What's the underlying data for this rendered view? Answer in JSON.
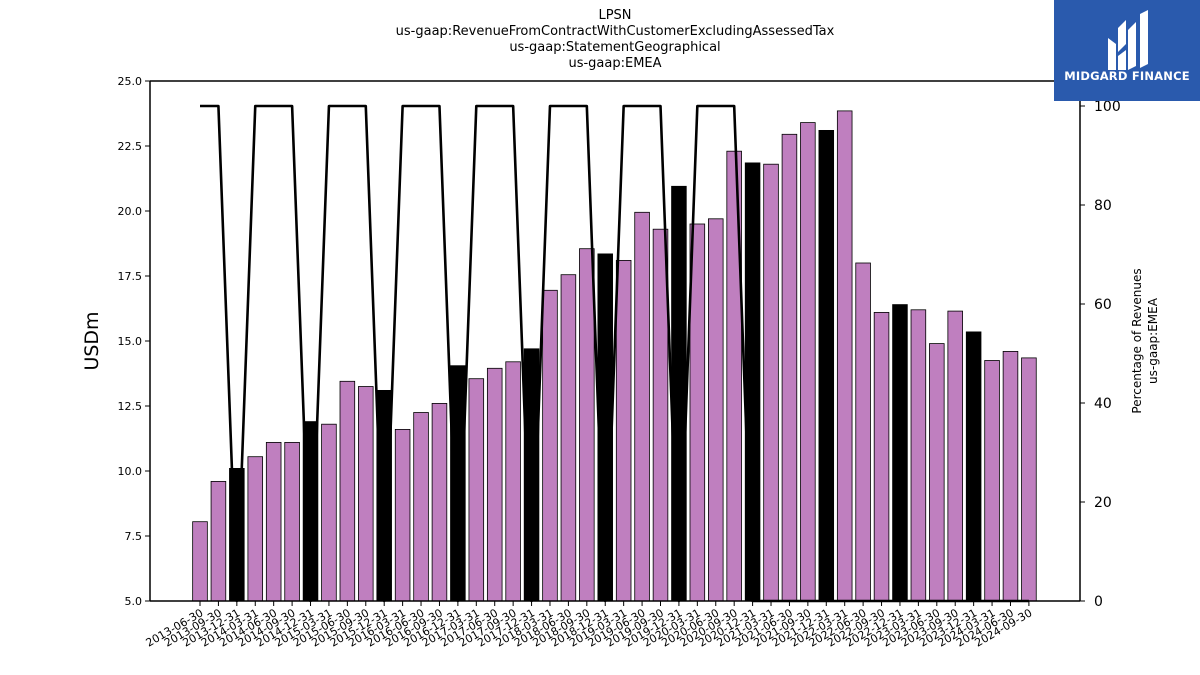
{
  "chart_data": {
    "type": "bar",
    "title_lines": [
      "LPSN",
      "us-gaap:RevenueFromContractWithCustomerExcludingAssessedTax",
      "us-gaap:StatementGeographical",
      "us-gaap:EMEA"
    ],
    "ylabel": "USDm",
    "y2label_lines": [
      "Percentage of Revenues",
      "us-gaap:EMEA"
    ],
    "ylim": [
      5.0,
      25.0
    ],
    "y2lim": [
      0,
      100
    ],
    "yticks": [
      "5.0",
      "7.5",
      "10.0",
      "12.5",
      "15.0",
      "17.5",
      "20.0",
      "22.5",
      "25.0"
    ],
    "y2ticks": [
      "0",
      "20",
      "40",
      "60",
      "80",
      "100"
    ],
    "categories": [
      "2013-06-30",
      "2013-09-30",
      "2013-12-31",
      "2014-03-31",
      "2014-06-30",
      "2014-09-30",
      "2014-12-31",
      "2015-03-31",
      "2015-06-30",
      "2015-09-30",
      "2015-12-31",
      "2016-03-31",
      "2016-06-30",
      "2016-09-30",
      "2016-12-31",
      "2017-03-31",
      "2017-06-30",
      "2017-09-30",
      "2017-12-31",
      "2018-03-31",
      "2018-06-30",
      "2018-09-30",
      "2018-12-31",
      "2019-03-31",
      "2019-06-30",
      "2019-09-30",
      "2019-12-31",
      "2020-03-31",
      "2020-06-30",
      "2020-09-30",
      "2020-12-31",
      "2021-03-31",
      "2021-06-30",
      "2021-09-30",
      "2021-12-31",
      "2022-03-31",
      "2022-06-30",
      "2022-09-30",
      "2022-12-31",
      "2023-03-31",
      "2023-06-30",
      "2023-09-30",
      "2023-12-31",
      "2024-03-31",
      "2024-06-30",
      "2024-09-30"
    ],
    "series": [
      {
        "values": [
          8.05,
          9.6,
          10.1,
          10.55,
          11.1,
          11.1,
          11.9,
          11.8,
          13.45,
          13.25,
          13.1,
          11.6,
          12.25,
          12.6,
          14.05,
          13.55,
          13.95,
          14.2,
          14.7,
          16.95,
          17.55,
          18.55,
          18.35,
          18.1,
          19.95,
          19.3,
          20.95,
          19.5,
          19.7,
          22.3,
          21.85,
          21.8,
          22.95,
          23.4,
          23.1,
          23.85,
          18.0,
          16.1,
          16.4,
          16.2,
          14.9,
          16.15,
          15.35,
          14.25,
          14.6,
          14.35
        ],
        "highlight": [
          false,
          false,
          true,
          false,
          false,
          false,
          true,
          false,
          false,
          false,
          true,
          false,
          false,
          false,
          true,
          false,
          false,
          false,
          true,
          false,
          false,
          false,
          true,
          false,
          false,
          false,
          true,
          false,
          false,
          false,
          true,
          false,
          false,
          false,
          true,
          false,
          false,
          false,
          true,
          false,
          false,
          false,
          true,
          false,
          false,
          false
        ],
        "color": "#bf7fbf",
        "highlight_color": "#000000"
      }
    ],
    "line_series": {
      "axis": "secondary",
      "values": [
        100,
        100,
        0,
        100,
        100,
        100,
        0,
        100,
        100,
        100,
        0,
        100,
        100,
        100,
        0,
        100,
        100,
        100,
        0,
        100,
        100,
        100,
        0,
        100,
        100,
        100,
        0,
        100,
        100,
        100,
        0,
        0,
        0,
        0,
        0,
        0,
        0,
        0,
        0,
        0,
        0,
        0,
        0,
        0,
        0,
        0
      ],
      "color": "#000000"
    }
  },
  "logo": {
    "text": "MIDGARD FINANCE",
    "background": "#2a5aad"
  }
}
